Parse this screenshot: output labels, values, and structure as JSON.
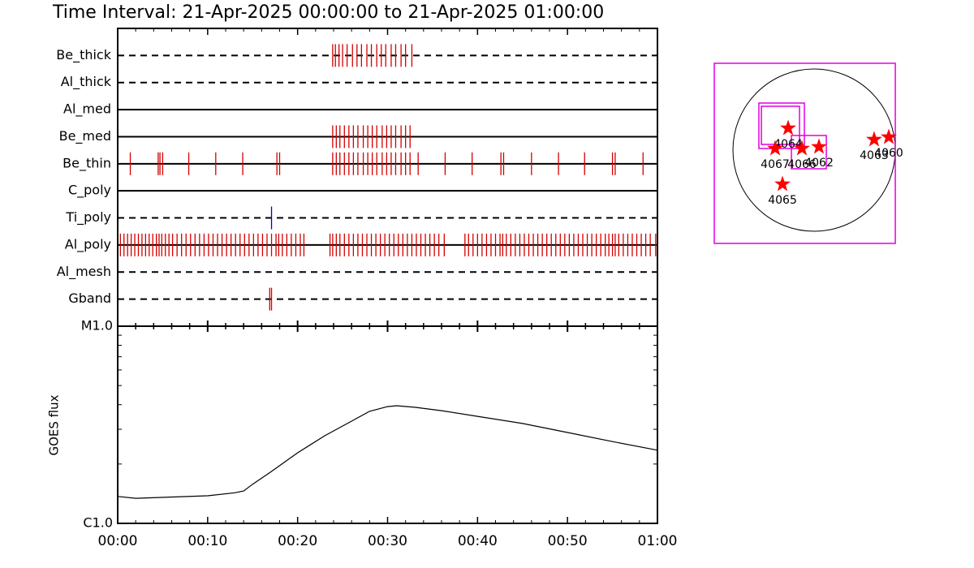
{
  "chart_data": [
    {
      "type": "timeline",
      "title": "Time Interval: 21-Apr-2025 00:00:00 to 21-Apr-2025 01:00:00",
      "xlim": [
        0,
        60
      ],
      "rows": [
        {
          "name": "Be_thick",
          "style": "dashed",
          "color": "#d40000",
          "events": [
            23.9,
            24.2,
            24.6,
            25.0,
            25.5,
            26.1,
            26.6,
            27.1,
            27.7,
            28.2,
            28.8,
            29.3,
            29.8,
            30.4,
            30.9,
            31.5,
            32.0,
            32.7
          ]
        },
        {
          "name": "Al_thick",
          "style": "dashed",
          "color": "#d40000",
          "events": []
        },
        {
          "name": "Al_med",
          "style": "solid",
          "color": "#d40000",
          "events": []
        },
        {
          "name": "Be_med",
          "style": "solid",
          "color": "#d40000",
          "events": [
            23.9,
            24.3,
            24.7,
            25.2,
            25.7,
            26.2,
            26.7,
            27.3,
            27.8,
            28.3,
            28.8,
            29.4,
            29.9,
            30.4,
            30.9,
            31.5,
            32.0,
            32.5
          ]
        },
        {
          "name": "Be_thin",
          "style": "solid",
          "color": "#d40000",
          "events": [
            1.4,
            4.5,
            4.7,
            5.0,
            7.9,
            10.9,
            13.9,
            17.7,
            18.0,
            23.9,
            24.3,
            24.7,
            25.2,
            25.7,
            26.2,
            26.7,
            27.3,
            27.8,
            28.3,
            28.8,
            29.4,
            29.9,
            30.4,
            30.9,
            31.5,
            32.0,
            32.5,
            33.4,
            36.4,
            39.4,
            42.6,
            42.9,
            46.0,
            49.0,
            51.9,
            55.0,
            55.3,
            58.4
          ]
        },
        {
          "name": "C_poly",
          "style": "solid",
          "color": "#d40000",
          "events": []
        },
        {
          "name": "Ti_poly",
          "style": "dashed",
          "color": "#0000cc",
          "events": [
            17.1
          ]
        },
        {
          "name": "Al_poly",
          "style": "solid",
          "color": "#d40000",
          "events": [
            0.3,
            0.7,
            1.1,
            1.5,
            1.9,
            2.3,
            2.7,
            3.1,
            3.5,
            3.9,
            4.3,
            4.6,
            4.9,
            5.3,
            5.7,
            6.1,
            6.6,
            7.1,
            7.6,
            8.1,
            8.6,
            9.1,
            9.6,
            10.1,
            10.6,
            11.1,
            11.6,
            12.1,
            12.6,
            13.1,
            13.6,
            14.1,
            14.6,
            15.1,
            15.6,
            16.1,
            16.6,
            17.1,
            17.6,
            17.9,
            18.3,
            18.8,
            19.3,
            19.8,
            20.3,
            20.7,
            23.6,
            23.9,
            24.3,
            24.7,
            25.2,
            25.7,
            26.2,
            26.7,
            27.2,
            27.7,
            28.2,
            28.7,
            29.2,
            29.7,
            30.2,
            30.7,
            31.2,
            31.7,
            32.2,
            32.7,
            33.2,
            33.7,
            34.2,
            34.7,
            35.2,
            35.7,
            36.3,
            38.6,
            39.0,
            39.5,
            40.0,
            40.5,
            41.0,
            41.5,
            42.0,
            42.5,
            42.8,
            43.2,
            43.7,
            44.2,
            44.7,
            45.2,
            45.7,
            46.2,
            46.7,
            47.2,
            47.7,
            48.2,
            48.7,
            49.2,
            49.7,
            50.2,
            50.7,
            51.2,
            51.7,
            52.2,
            52.7,
            53.2,
            53.7,
            54.2,
            54.6,
            55.0,
            55.3,
            55.7,
            56.2,
            56.7,
            57.2,
            57.7,
            58.2,
            58.7,
            59.2,
            59.8
          ]
        },
        {
          "name": "Al_mesh",
          "style": "dashed",
          "color": "#d40000",
          "events": []
        },
        {
          "name": "Gband",
          "style": "dashed",
          "color": "#d40000",
          "events": [
            16.9,
            17.1
          ]
        }
      ]
    },
    {
      "type": "line",
      "y_label": "GOES flux",
      "log_y": true,
      "color": "#000000",
      "x": [
        0,
        2,
        10,
        13,
        14,
        15,
        17,
        20,
        23,
        26,
        28,
        30,
        31,
        33,
        36,
        40,
        45,
        50,
        55,
        60
      ],
      "values": [
        1.37e-06,
        1.34e-06,
        1.38e-06,
        1.43e-06,
        1.46e-06,
        1.58e-06,
        1.82e-06,
        2.28e-06,
        2.78e-06,
        3.3e-06,
        3.7e-06,
        3.91e-06,
        3.95e-06,
        3.88e-06,
        3.73e-06,
        3.49e-06,
        3.21e-06,
        2.89e-06,
        2.6e-06,
        2.35e-06
      ],
      "xlim": [
        0,
        60
      ],
      "xticks": [
        {
          "value": 0,
          "label": "00:00"
        },
        {
          "value": 10,
          "label": "00:10"
        },
        {
          "value": 20,
          "label": "00:20"
        },
        {
          "value": 30,
          "label": "00:30"
        },
        {
          "value": 40,
          "label": "00:40"
        },
        {
          "value": 50,
          "label": "00:50"
        },
        {
          "value": 60,
          "label": "01:00"
        }
      ],
      "ylim": [
        1e-06,
        1e-05
      ],
      "yticks": [
        {
          "value": 1e-06,
          "label": "C1.0"
        },
        {
          "value": 1e-05,
          "label": "M1.0"
        }
      ]
    },
    {
      "type": "map",
      "disk_radius": 960,
      "disk_color": "#000000",
      "fov_color": "#e000e0",
      "star_color": "#ff0000",
      "fovs": [
        {
          "xc": -110,
          "yc": -38,
          "w": 2141,
          "h": 2131
        },
        {
          "xc": -384,
          "yc": 288,
          "w": 538,
          "h": 538
        },
        {
          "xc": -398,
          "yc": 293,
          "w": 451,
          "h": 451
        },
        {
          "xc": -62,
          "yc": -24,
          "w": 413,
          "h": 394
        }
      ],
      "points": [
        {
          "name": "4064",
          "x": -307,
          "y": 259
        },
        {
          "name": "4067",
          "x": -461,
          "y": 19
        },
        {
          "name": "4066",
          "x": -144,
          "y": 19
        },
        {
          "name": "4062",
          "x": 58,
          "y": 38
        },
        {
          "name": "4063",
          "x": 710,
          "y": 125
        },
        {
          "name": "4060",
          "x": 883,
          "y": 154
        },
        {
          "name": "4065",
          "x": -374,
          "y": -403
        }
      ]
    }
  ]
}
